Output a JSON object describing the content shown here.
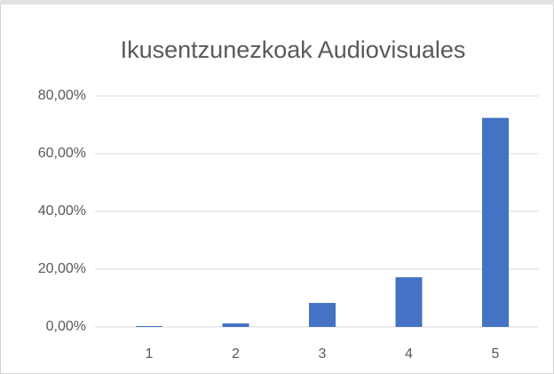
{
  "chart_data": {
    "type": "bar",
    "title": "Ikusentzunezkoak Audiovisuales",
    "categories": [
      "1",
      "2",
      "3",
      "4",
      "5"
    ],
    "values": [
      0.3,
      1.2,
      8.3,
      17.2,
      72.4
    ],
    "color": "#4472c4",
    "ylim": [
      0,
      80
    ],
    "yticks": [
      {
        "value": 0,
        "label": "0,00%"
      },
      {
        "value": 20,
        "label": "20,00%"
      },
      {
        "value": 40,
        "label": "40,00%"
      },
      {
        "value": 60,
        "label": "60,00%"
      },
      {
        "value": 80,
        "label": "80,00%"
      }
    ],
    "grid": true
  }
}
